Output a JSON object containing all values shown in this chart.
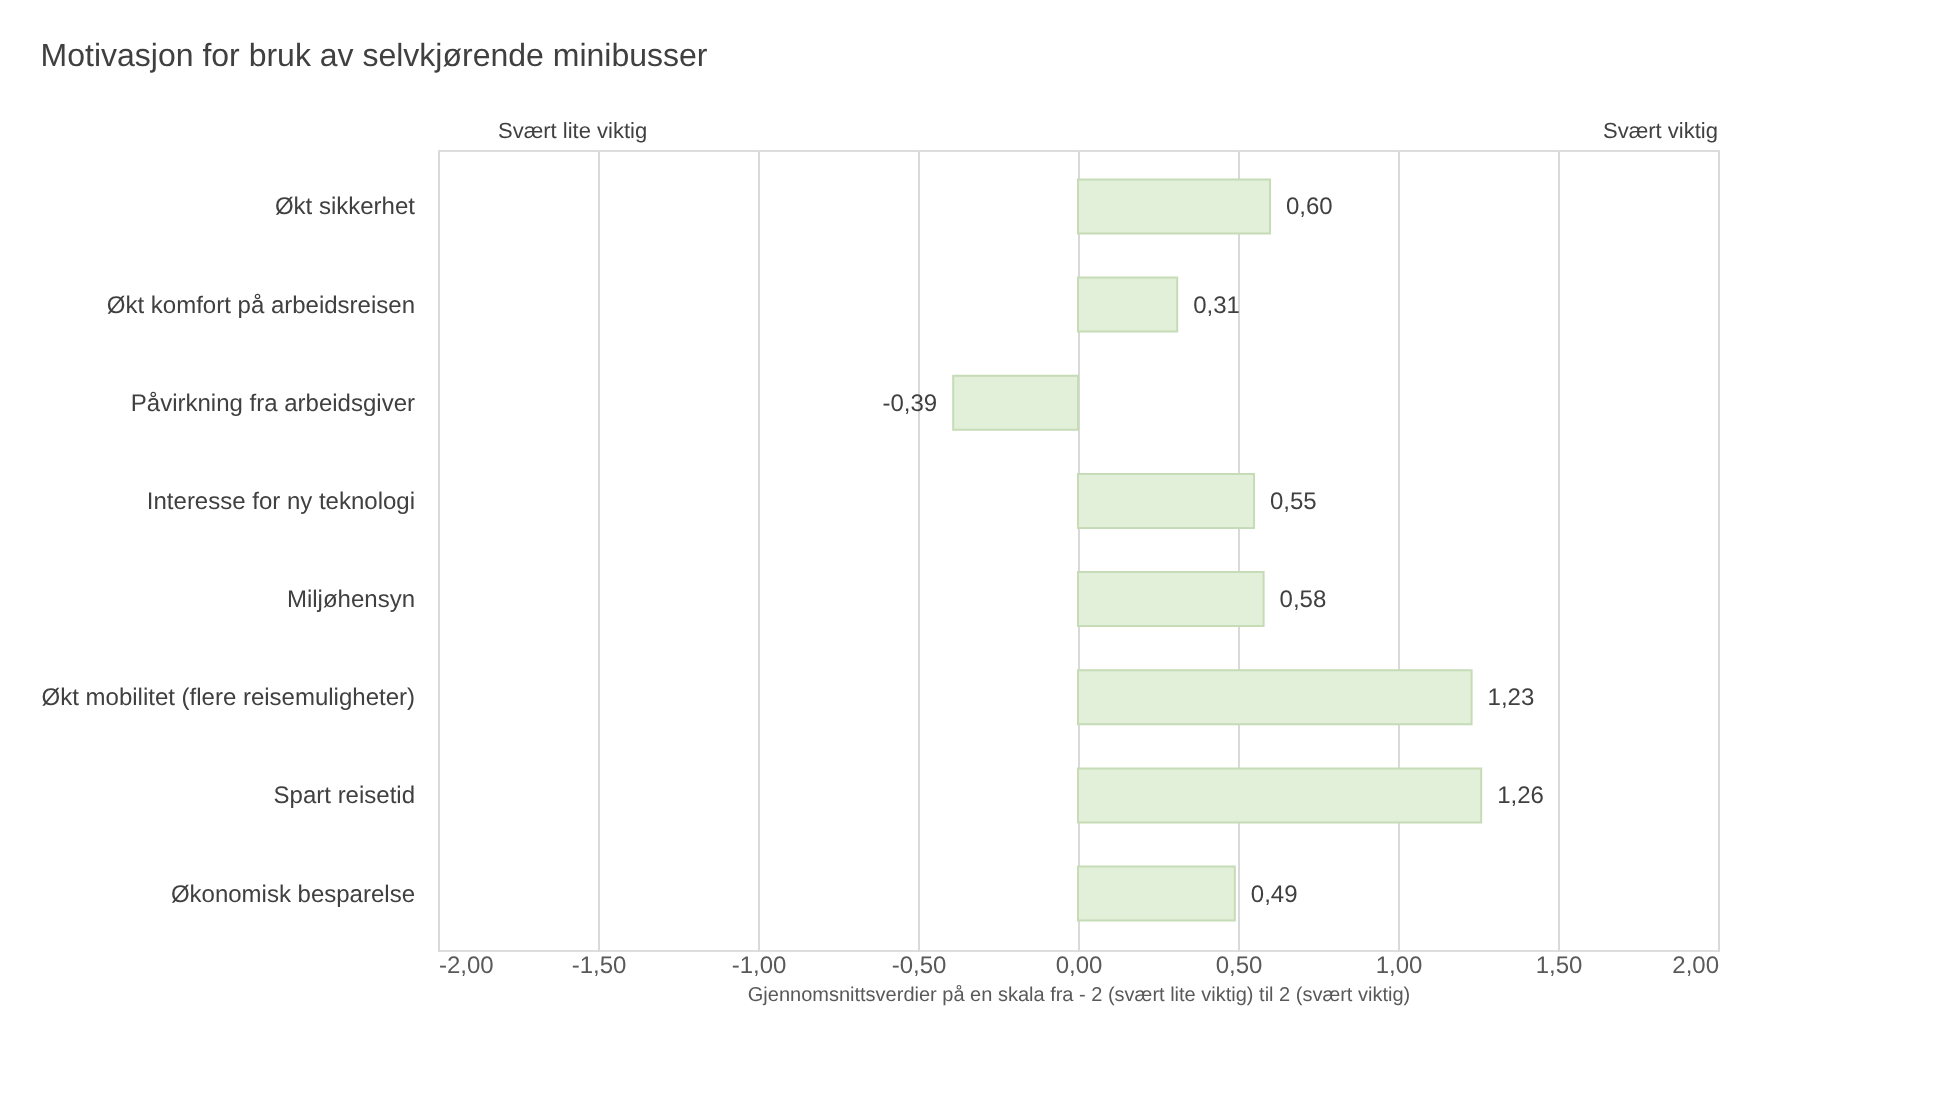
{
  "chart_data": {
    "type": "bar",
    "orientation": "horizontal",
    "title": "Motivasjon for bruk av selvkjørende minibusser",
    "categories": [
      "Økt sikkerhet",
      "Økt komfort på arbeidsreisen",
      "Påvirkning fra arbeidsgiver",
      "Interesse for ny teknologi",
      "Miljøhensyn",
      "Økt mobilitet (flere reisemuligheter)",
      "Spart reisetid",
      "Økonomisk besparelse"
    ],
    "values": [
      0.6,
      0.31,
      -0.39,
      0.55,
      0.58,
      1.23,
      1.26,
      0.49
    ],
    "value_labels": [
      "0,60",
      "0,31",
      "-0,39",
      "0,55",
      "0,58",
      "1,23",
      "1,26",
      "0,49"
    ],
    "color": "#e2efd9",
    "xlim": [
      -2,
      2
    ],
    "xticks": [
      {
        "value": -2,
        "label": "-2,00"
      },
      {
        "value": -1.5,
        "label": "-1,50"
      },
      {
        "value": -1,
        "label": "-1,00"
      },
      {
        "value": -0.5,
        "label": "-0,50"
      },
      {
        "value": 0,
        "label": "0,00"
      },
      {
        "value": 0.5,
        "label": "0,50"
      },
      {
        "value": 1,
        "label": "1,00"
      },
      {
        "value": 1.5,
        "label": "1,50"
      },
      {
        "value": 2,
        "label": "2,00"
      }
    ],
    "xlabel": "Gjennomsnittsverdier på en skala fra - 2 (svært lite viktig) til 2 (svært viktig)",
    "annotations": [
      "Svært lite viktig",
      "Svært viktig"
    ],
    "grid": "x"
  }
}
